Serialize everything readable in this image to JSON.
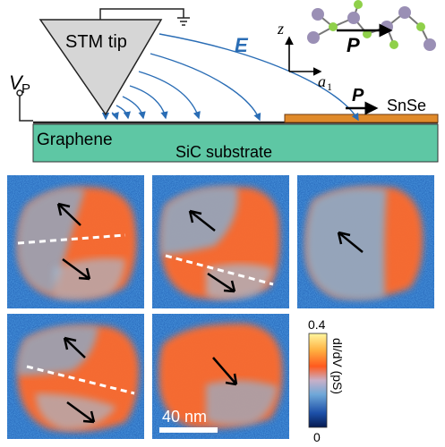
{
  "schematic": {
    "tip_label": "STM tip",
    "voltage_label": "V",
    "voltage_sub": "P",
    "field_label": "E",
    "axis_z": "z",
    "axis_a": "a",
    "axis_a_sub": "1",
    "polarization_label": "P",
    "sample_label": "SnSe",
    "graphene_label": "Graphene",
    "substrate_label": "SiC substrate",
    "colors": {
      "substrate": "#5ec7a4",
      "tip": "#d6d6d6",
      "field_lines": "#2a6db5",
      "snse": "#e08a2a",
      "atom_sn": "#9a8fb5",
      "atom_se": "#8fd04a"
    }
  },
  "maps": {
    "scale_bar_label": "40 nm",
    "colorbar": {
      "max_label": "0.4",
      "min_label": "0",
      "axis_label": "dI/dV (pS)"
    },
    "panels": [
      "panel-1",
      "panel-2",
      "panel-3",
      "panel-4",
      "panel-5"
    ]
  }
}
